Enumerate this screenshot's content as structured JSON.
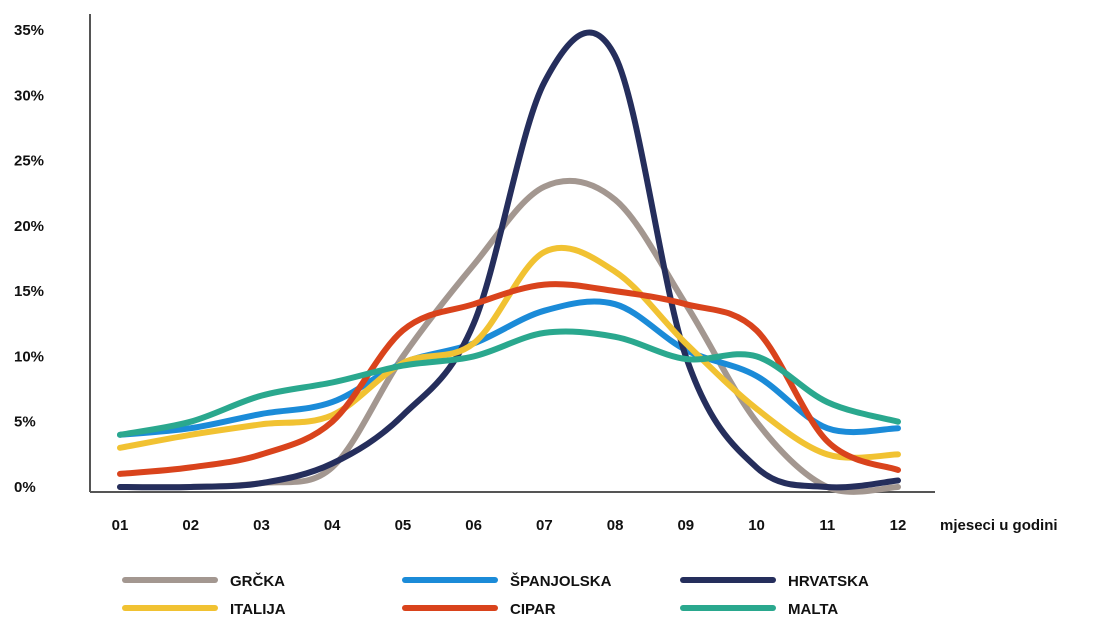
{
  "chart_data": {
    "type": "line",
    "title": "",
    "xlabel": "mjeseci u godini",
    "ylabel": "",
    "categories": [
      "01",
      "02",
      "03",
      "04",
      "05",
      "06",
      "07",
      "08",
      "09",
      "10",
      "11",
      "12"
    ],
    "y_ticks": [
      "0%",
      "5%",
      "10%",
      "15%",
      "20%",
      "25%",
      "30%",
      "35%"
    ],
    "ylim": [
      0,
      35
    ],
    "grid": false,
    "legend_position": "bottom",
    "series": [
      {
        "name": "GRČKA",
        "color": "#a39790",
        "values": [
          0,
          0,
          0.3,
          1.5,
          10,
          17,
          23,
          22,
          14,
          5,
          0,
          0
        ]
      },
      {
        "name": "ŠPANJOLSKA",
        "color": "#1b8bd8",
        "values": [
          4,
          4.5,
          5.6,
          6.5,
          9.5,
          11,
          13.5,
          14,
          10.5,
          8.5,
          4.5,
          4.5
        ]
      },
      {
        "name": "HRVATSKA",
        "color": "#252e5c",
        "values": [
          0,
          0,
          0.3,
          1.8,
          5.5,
          12.5,
          31,
          33,
          10,
          1.5,
          0,
          0.5
        ]
      },
      {
        "name": "ITALIJA",
        "color": "#f1c232",
        "values": [
          3,
          4,
          4.8,
          5.5,
          9.5,
          11,
          18,
          16.5,
          11,
          6,
          2.5,
          2.5
        ]
      },
      {
        "name": "CIPAR",
        "color": "#d9431c",
        "values": [
          1,
          1.5,
          2.5,
          5,
          12,
          14,
          15.5,
          15,
          14,
          12,
          3.5,
          1.3
        ]
      },
      {
        "name": "MALTA",
        "color": "#2aa88e",
        "values": [
          4,
          5,
          7,
          8,
          9.3,
          10,
          11.8,
          11.5,
          9.8,
          10,
          6.5,
          5
        ]
      }
    ]
  }
}
